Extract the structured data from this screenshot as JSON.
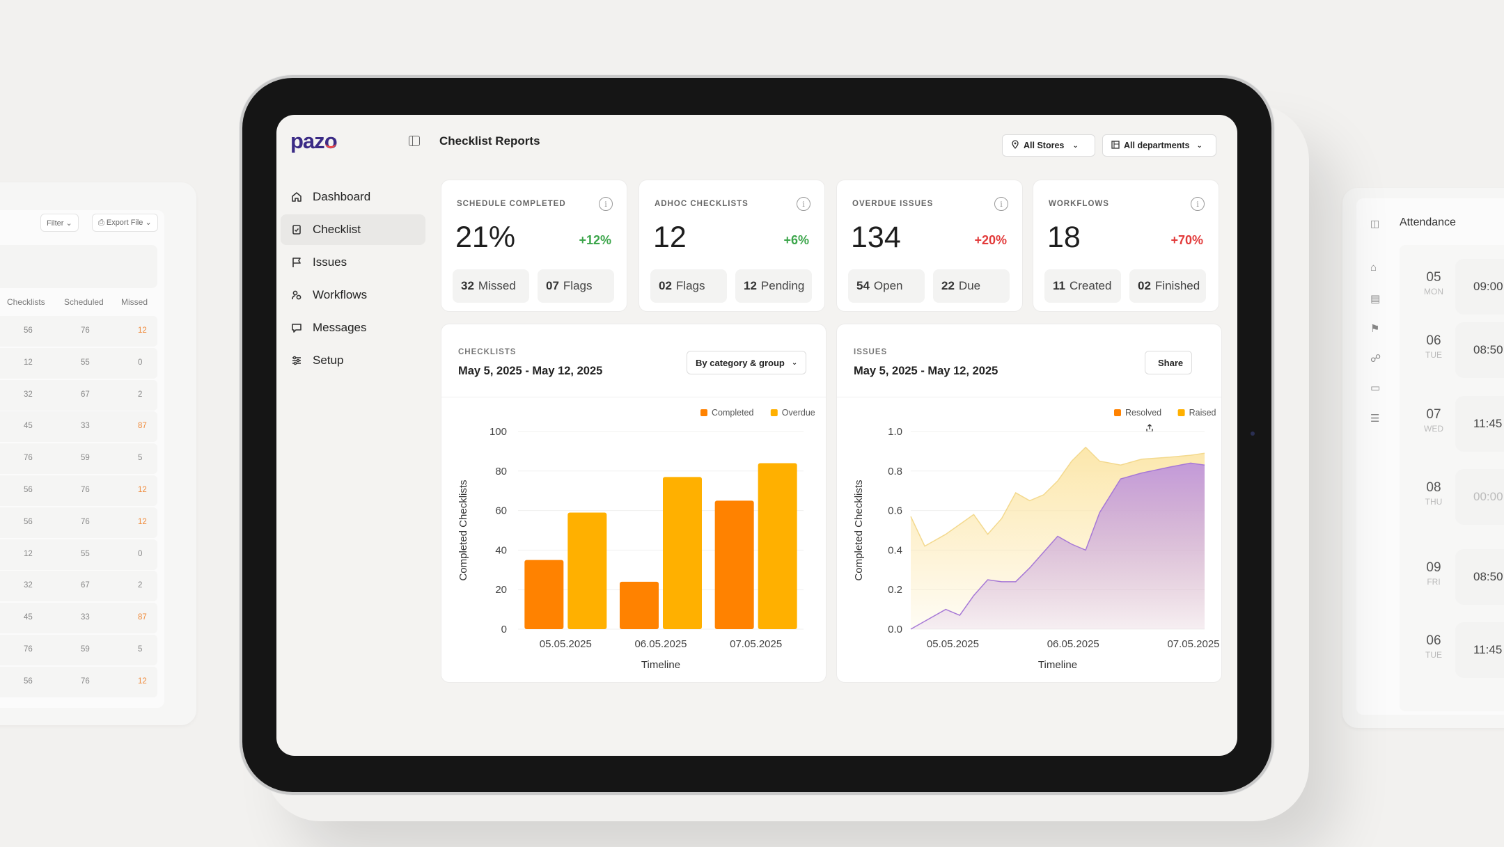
{
  "app": {
    "logo": "pazo",
    "page_title": "Checklist Reports"
  },
  "filters": {
    "stores": "All Stores",
    "departments": "All departments"
  },
  "nav": [
    {
      "label": "Dashboard",
      "icon": "home-icon"
    },
    {
      "label": "Checklist",
      "icon": "checklist-icon",
      "active": true
    },
    {
      "label": "Issues",
      "icon": "flag-icon"
    },
    {
      "label": "Workflows",
      "icon": "workflow-icon"
    },
    {
      "label": "Messages",
      "icon": "message-icon"
    },
    {
      "label": "Setup",
      "icon": "sliders-icon"
    }
  ],
  "kpis": [
    {
      "label": "SCHEDULE COMPLETED",
      "value": "21%",
      "delta": "+12%",
      "trend": "up",
      "subs": [
        {
          "n": "32",
          "t": "Missed"
        },
        {
          "n": "07",
          "t": "Flags"
        }
      ]
    },
    {
      "label": "ADHOC CHECKLISTS",
      "value": "12",
      "delta": "+6%",
      "trend": "up",
      "subs": [
        {
          "n": "02",
          "t": "Flags"
        },
        {
          "n": "12",
          "t": "Pending"
        }
      ]
    },
    {
      "label": "OVERDUE ISSUES",
      "value": "134",
      "delta": "+20%",
      "trend": "down",
      "subs": [
        {
          "n": "54",
          "t": "Open"
        },
        {
          "n": "22",
          "t": "Due"
        }
      ]
    },
    {
      "label": "WORKFLOWS",
      "value": "18",
      "delta": "+70%",
      "trend": "down",
      "subs": [
        {
          "n": "11",
          "t": "Created"
        },
        {
          "n": "02",
          "t": "Finished"
        }
      ]
    }
  ],
  "checklists_card": {
    "caption": "CHECKLISTS",
    "range": "May 5, 2025 - May 12, 2025",
    "control": "By category & group"
  },
  "issues_card": {
    "caption": "ISSUES",
    "range": "May 5, 2025 - May 12, 2025",
    "control": "Share"
  },
  "chart_data": [
    {
      "type": "bar",
      "categories": [
        "05.05.2025",
        "06.05.2025",
        "07.05.2025"
      ],
      "series": [
        {
          "name": "Completed",
          "color": "#ff8200",
          "values": [
            35,
            24,
            65
          ]
        },
        {
          "name": "Overdue",
          "color": "#ffb000",
          "values": [
            59,
            77,
            84
          ]
        }
      ],
      "ylim": [
        0,
        100
      ],
      "yticks": [
        "0",
        "20",
        "40",
        "60",
        "80",
        "100"
      ],
      "xlabel": "Timeline",
      "ylabel": "Completed Checklists"
    },
    {
      "type": "area",
      "categories": [
        "05.05.2025",
        "06.05.2025",
        "07.05.2025"
      ],
      "x": [
        0,
        0.1,
        0.25,
        0.35,
        0.45,
        0.55,
        0.65,
        0.75,
        0.85,
        0.95,
        1.05,
        1.15,
        1.25,
        1.35,
        1.5,
        1.65,
        1.85,
        2.0,
        2.1
      ],
      "series": [
        {
          "name": "Resolved",
          "color": "#b98ce0",
          "values": [
            0.0,
            0.04,
            0.1,
            0.07,
            0.17,
            0.25,
            0.24,
            0.24,
            0.31,
            0.39,
            0.47,
            0.43,
            0.4,
            0.59,
            0.76,
            0.79,
            0.82,
            0.84,
            0.83
          ]
        },
        {
          "name": "Raised",
          "color": "#fce6a8",
          "values": [
            0.57,
            0.42,
            0.48,
            0.53,
            0.58,
            0.48,
            0.56,
            0.69,
            0.65,
            0.68,
            0.75,
            0.85,
            0.92,
            0.85,
            0.83,
            0.86,
            0.87,
            0.88,
            0.89
          ]
        }
      ],
      "ylim": [
        0,
        1.0
      ],
      "yticks": [
        "0.0",
        "0.2",
        "0.4",
        "0.6",
        "0.8",
        "1.0"
      ],
      "xlabel": "Timeline",
      "ylabel": "Completed Checklists"
    }
  ],
  "left_ghost": {
    "filter": "Filter",
    "export": "Export File",
    "headers": [
      "Checklists",
      "Scheduled",
      "Missed"
    ],
    "rows": [
      [
        "56",
        "76",
        "12"
      ],
      [
        "12",
        "55",
        "0"
      ],
      [
        "32",
        "67",
        "2"
      ],
      [
        "45",
        "33",
        "87"
      ],
      [
        "76",
        "59",
        "5"
      ],
      [
        "56",
        "76",
        "12"
      ],
      [
        "56",
        "76",
        "12"
      ],
      [
        "12",
        "55",
        "0"
      ],
      [
        "32",
        "67",
        "2"
      ],
      [
        "45",
        "33",
        "87"
      ],
      [
        "76",
        "59",
        "5"
      ],
      [
        "56",
        "76",
        "12"
      ]
    ]
  },
  "right_ghost": {
    "title": "Attendance",
    "days": [
      {
        "d": "05",
        "w": "MON",
        "t": "09:00"
      },
      {
        "d": "06",
        "w": "TUE",
        "t": "08:50"
      },
      {
        "d": "07",
        "w": "WED",
        "t": "11:45 ..."
      },
      {
        "d": "08",
        "w": "THU",
        "t": "00:00"
      },
      {
        "d": "09",
        "w": "FRI",
        "t": "08:50"
      },
      {
        "d": "06",
        "w": "TUE",
        "t": "11:45 ..."
      }
    ]
  }
}
